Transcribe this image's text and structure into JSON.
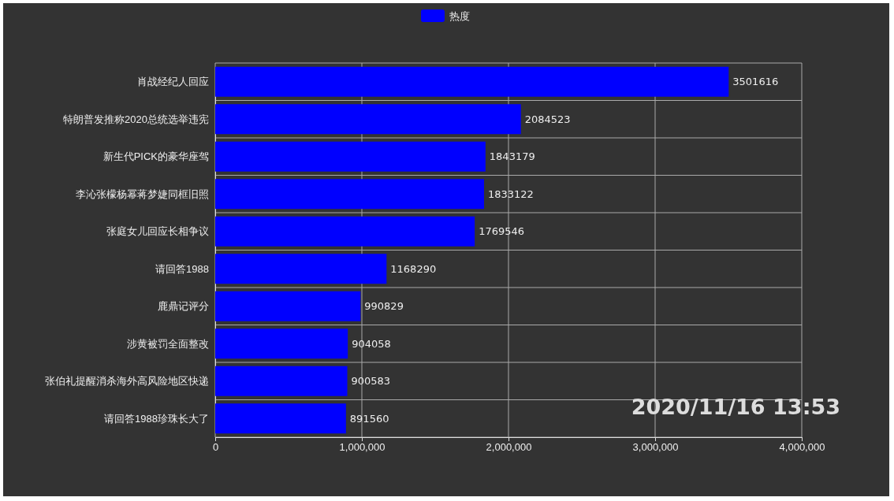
{
  "chart_data": {
    "type": "bar",
    "orientation": "horizontal",
    "categories": [
      "肖战经纪人回应",
      "特朗普发推称2020总统选举违宪",
      "新生代PICK的豪华座驾",
      "李沁张檬杨幂蒋梦婕同框旧照",
      "张庭女儿回应长相争议",
      "请回答1988",
      "鹿鼎记评分",
      "涉黄被罚全面整改",
      "张伯礼提醒消杀海外高风险地区快递",
      "请回答1988珍珠长大了"
    ],
    "series": [
      {
        "name": "热度",
        "color": "#0000ff",
        "values": [
          3501616,
          2084523,
          1843179,
          1833122,
          1769546,
          1168290,
          990829,
          904058,
          900583,
          891560
        ]
      }
    ],
    "xlim": [
      0,
      4000000
    ],
    "xticks": [
      0,
      {
        "value": 1000000,
        "label": "1,000,000"
      },
      {
        "value": 2000000,
        "label": "2,000,000"
      },
      {
        "value": 3000000,
        "label": "3,000,000"
      },
      {
        "value": 4000000,
        "label": "4,000,000"
      }
    ],
    "grid": true,
    "legend": "top",
    "data_labels": true,
    "annotations": [
      "2020/11/16 13:53"
    ]
  }
}
